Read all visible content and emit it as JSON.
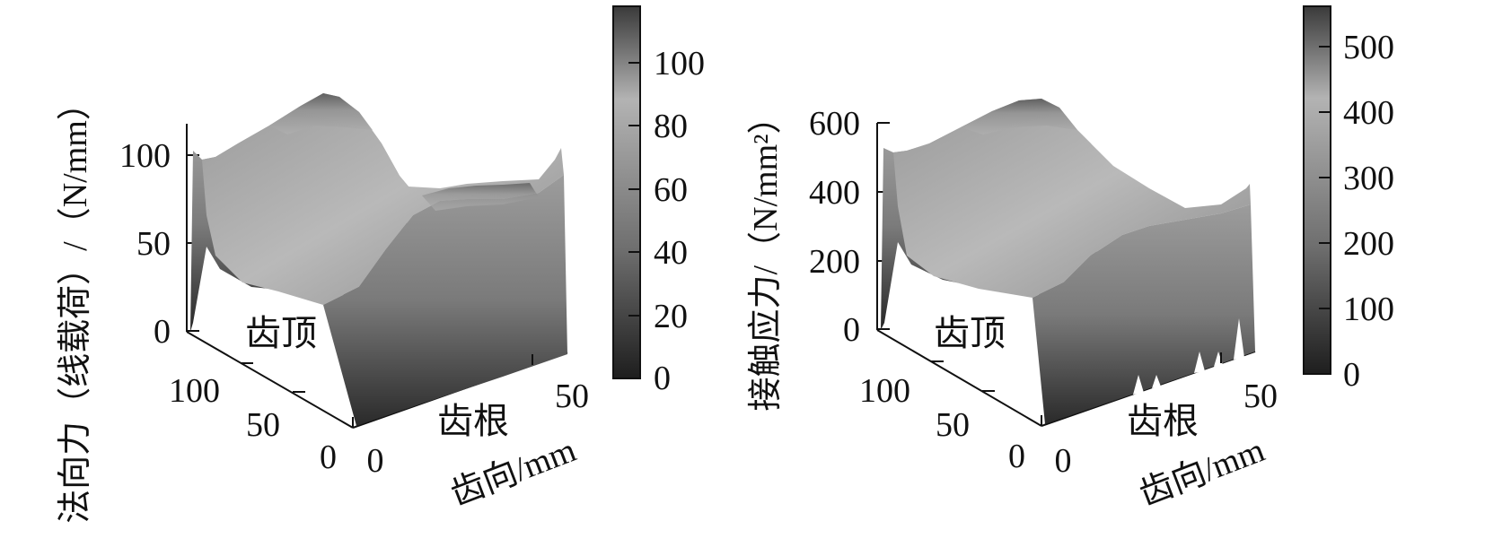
{
  "chart_data": [
    {
      "type": "surface3d",
      "zlabel": "法向力（线载荷）/（N/mm）",
      "xlabel": "齿向/mm",
      "region_labels": {
        "tip": "齿顶",
        "root": "齿根"
      },
      "x_ticks": [
        "0",
        "50"
      ],
      "y_ticks": [
        "0",
        "50",
        "100"
      ],
      "z_ticks": [
        "0",
        "50",
        "100"
      ],
      "x_range": [
        0,
        60
      ],
      "y_range": [
        0,
        120
      ],
      "zlim": [
        0,
        120
      ],
      "colorbar": {
        "ticks": [
          "0",
          "20",
          "40",
          "60",
          "80",
          "100"
        ],
        "range": [
          0,
          115
        ]
      },
      "grid": false,
      "colormap": "grayscale",
      "profile_along_flank": [
        {
          "x": 0,
          "z": 105
        },
        {
          "x": 10,
          "z": 100
        },
        {
          "x": 20,
          "z": 106
        },
        {
          "x": 30,
          "z": 112
        },
        {
          "x": 40,
          "z": 104
        },
        {
          "x": 50,
          "z": 100
        },
        {
          "x": 60,
          "z": 110
        }
      ]
    },
    {
      "type": "surface3d",
      "zlabel": "接触应力/（N/mm²）",
      "xlabel": "齿向/mm",
      "region_labels": {
        "tip": "齿顶",
        "root": "齿根"
      },
      "x_ticks": [
        "0",
        "50"
      ],
      "y_ticks": [
        "0",
        "50",
        "100"
      ],
      "z_ticks": [
        "0",
        "200",
        "400",
        "600"
      ],
      "x_range": [
        0,
        60
      ],
      "y_range": [
        0,
        120
      ],
      "zlim": [
        0,
        600
      ],
      "colorbar": {
        "ticks": [
          "0",
          "100",
          "200",
          "300",
          "400",
          "500"
        ],
        "range": [
          0,
          560
        ]
      },
      "grid": false,
      "colormap": "grayscale",
      "profile_along_flank": [
        {
          "x": 0,
          "z": 530
        },
        {
          "x": 10,
          "z": 500
        },
        {
          "x": 20,
          "z": 520
        },
        {
          "x": 30,
          "z": 555
        },
        {
          "x": 40,
          "z": 500
        },
        {
          "x": 50,
          "z": 450
        },
        {
          "x": 60,
          "z": 430
        }
      ]
    }
  ]
}
